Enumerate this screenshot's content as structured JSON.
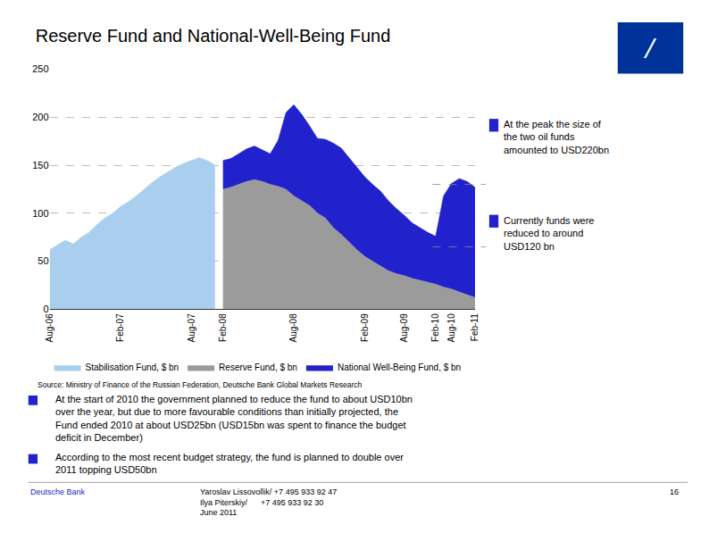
{
  "chart_data": {
    "type": "area",
    "title": "Reserve Fund and National-Well-Being Fund",
    "categories": [
      "Aug-06",
      null,
      null,
      null,
      null,
      null,
      null,
      null,
      null,
      "Feb-07",
      null,
      null,
      null,
      null,
      null,
      null,
      null,
      null,
      "Aug-07",
      null,
      null,
      null,
      "Feb-08",
      null,
      null,
      null,
      null,
      null,
      null,
      null,
      null,
      "Aug-08",
      null,
      null,
      null,
      null,
      null,
      null,
      null,
      null,
      "Feb-09",
      null,
      null,
      null,
      null,
      "Aug-09",
      null,
      null,
      null,
      "Feb-10",
      null,
      "Aug-10",
      null,
      null,
      "Feb-11"
    ],
    "series": [
      {
        "name": "Stabilisation Fund, $ bn",
        "color": "#aacfee",
        "values": [
          62,
          67,
          72,
          68,
          75,
          80,
          88,
          95,
          100,
          107,
          112,
          118,
          125,
          132,
          138,
          143,
          148,
          152,
          155,
          158,
          155,
          150,
          null,
          null,
          null,
          null,
          null,
          null,
          null,
          null,
          null,
          null,
          null,
          null,
          null,
          null,
          null,
          null,
          null,
          null,
          null,
          null,
          null,
          null,
          null,
          null,
          null,
          null,
          null,
          null,
          null,
          null,
          null,
          null,
          null
        ]
      },
      {
        "name": "Reserve Fund, $ bn",
        "color": "#9b9b9b",
        "values": [
          null,
          null,
          null,
          null,
          null,
          null,
          null,
          null,
          null,
          null,
          null,
          null,
          null,
          null,
          null,
          null,
          null,
          null,
          null,
          null,
          null,
          null,
          125,
          127,
          130,
          133,
          135,
          133,
          130,
          128,
          125,
          118,
          113,
          108,
          100,
          95,
          85,
          78,
          70,
          62,
          55,
          50,
          45,
          40,
          37,
          35,
          32,
          30,
          28,
          26,
          23,
          21,
          18,
          15,
          12
        ]
      },
      {
        "name": "National Well-Being Fund, $ bn",
        "color": "#2222cc",
        "values": [
          null,
          null,
          null,
          null,
          null,
          null,
          null,
          null,
          null,
          null,
          null,
          null,
          null,
          null,
          null,
          null,
          null,
          null,
          null,
          null,
          null,
          null,
          30,
          30,
          32,
          34,
          35,
          33,
          32,
          48,
          80,
          95,
          90,
          83,
          78,
          82,
          88,
          90,
          88,
          85,
          83,
          80,
          78,
          73,
          68,
          63,
          58,
          55,
          52,
          50,
          95,
          110,
          118,
          118,
          115
        ]
      }
    ],
    "stacked": true,
    "ylim": [
      0,
      250
    ],
    "yticks": [
      0,
      50,
      100,
      150,
      200,
      250
    ],
    "grid": true,
    "legend": "bottom",
    "reference_lines": [
      130,
      65
    ],
    "annotations": [
      "At the peak the size of\nthe two oil funds\namounted to USD220bn",
      "Currently funds were\nreduced to around\nUSD120 bn"
    ],
    "source": "Source: Ministry of Finance of the Russian Federation, Deutsche Bank Global Markets Research",
    "notes": [
      "At the start of 2010 the government planned to reduce the fund to about USD10bn\nover the year, but due to more favourable conditions than initially projected, the\nFund ended 2010 at about USD25bn (USD15bn was spent to finance the budget\ndeficit in December)",
      "According to the most recent budget strategy, the fund is planned to double over\n2011 topping USD50bn"
    ],
    "footer": [
      "Deutsche Bank",
      "Yaroslav Lissovollik/ +7 495 933 92 47\nIlya Piterskiy/      +7 495 933 92 30\nJune 2011",
      "16"
    ],
    "logo": "/"
  }
}
